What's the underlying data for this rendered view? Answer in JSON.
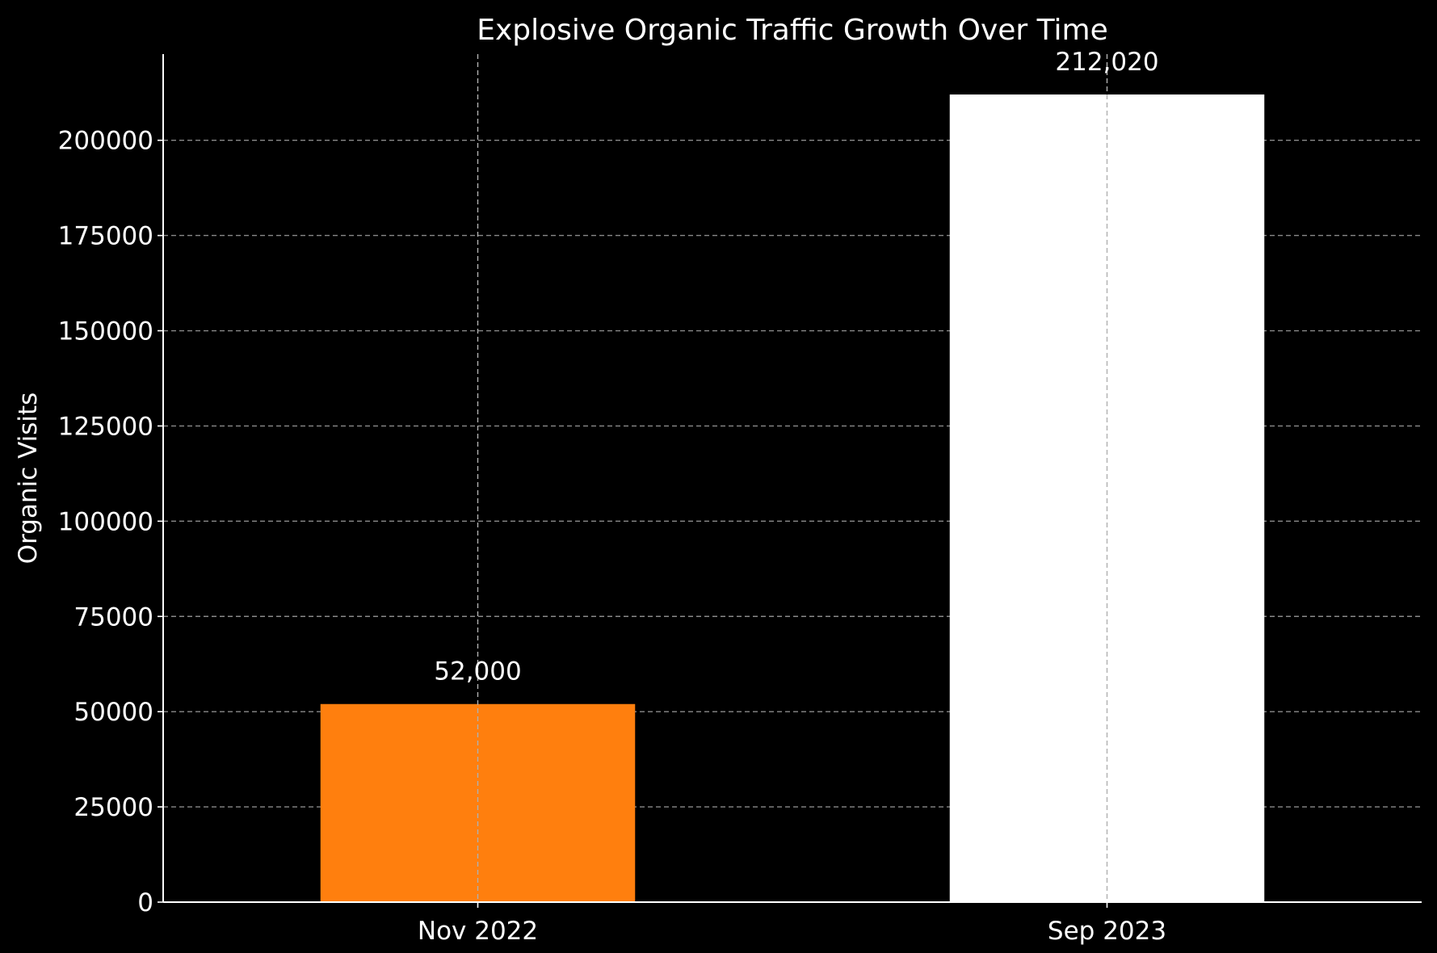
{
  "chart_data": {
    "type": "bar",
    "title": "Explosive Organic Traffic Growth Over Time",
    "xlabel": "",
    "ylabel": "Organic Visits",
    "categories": [
      "Nov 2022",
      "Sep 2023"
    ],
    "values": [
      52000,
      212020
    ],
    "value_labels": [
      "52,000",
      "212,020"
    ],
    "bar_colors": [
      "#ff7f0e",
      "#ffffff"
    ],
    "ylim": [
      0,
      222621
    ],
    "yticks": [
      0,
      25000,
      50000,
      75000,
      100000,
      125000,
      150000,
      175000,
      200000
    ],
    "ytick_labels": [
      "0",
      "25000",
      "50000",
      "75000",
      "100000",
      "125000",
      "150000",
      "175000",
      "200000"
    ],
    "grid": true,
    "background": "#000000"
  }
}
